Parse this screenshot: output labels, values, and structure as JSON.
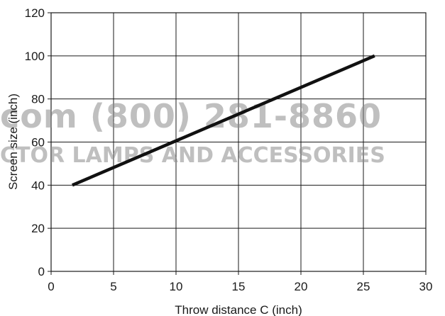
{
  "chart_data": {
    "type": "line",
    "xlabel": "Throw distance C (inch)",
    "ylabel": "Screen size (inch)",
    "xlim": [
      0,
      30
    ],
    "ylim": [
      0,
      120
    ],
    "x_ticks": [
      0,
      5,
      10,
      15,
      20,
      25,
      30
    ],
    "y_ticks": [
      0,
      20,
      40,
      60,
      80,
      100,
      120
    ],
    "grid": true,
    "series": [
      {
        "x": [
          1.7,
          25.9
        ],
        "y": [
          40,
          100
        ],
        "color": "#111111"
      }
    ]
  },
  "watermark": {
    "line1": "com (800) 281-8860",
    "line2": "CTOR LAMPS AND ACCESSORIES"
  }
}
